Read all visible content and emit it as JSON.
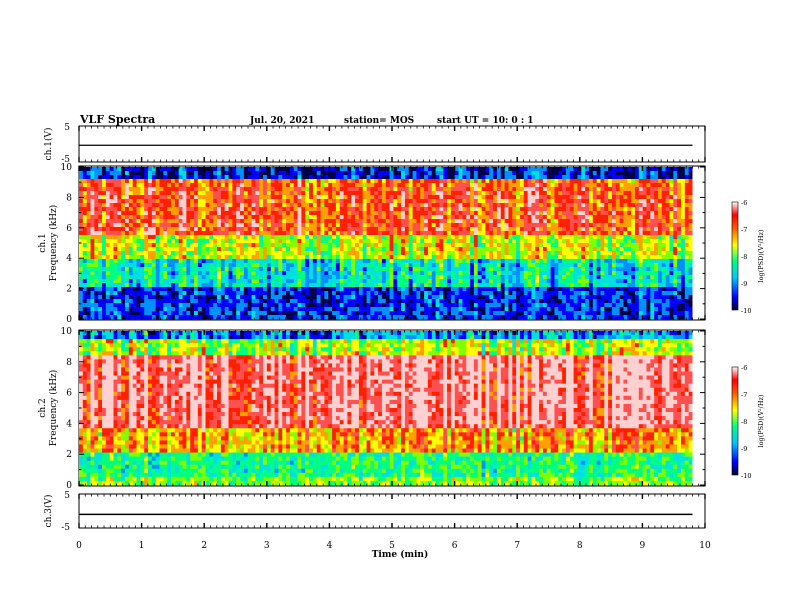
{
  "header": {
    "title": "VLF Spectra",
    "date": "Jul. 20, 2021",
    "station": "station= MOS",
    "start": "start  UT =   10: 0  : 1"
  },
  "chart_data": [
    {
      "type": "line",
      "panel": "ch1-voltage",
      "ylabel": "ch.1(V)",
      "ylim": [
        -5,
        5
      ],
      "yticks": [
        "5",
        "-5"
      ],
      "xlim": [
        0,
        10
      ],
      "series": [
        {
          "x": [
            0,
            9.8
          ],
          "values": [
            -0.4,
            -0.4
          ]
        }
      ]
    },
    {
      "type": "heatmap",
      "panel": "ch1-spectrogram",
      "ylabel_line1": "ch.1",
      "ylabel_line2": "Frequency (kHz)",
      "ylim": [
        0,
        10
      ],
      "yticks": [
        "0",
        "2",
        "4",
        "6",
        "8",
        "10"
      ],
      "xlim": [
        0,
        10
      ],
      "data_end_min": 9.8,
      "colorbar": {
        "label": "log(PSD)(V²/Hz)",
        "range": [
          -10,
          -6
        ],
        "ticks": [
          "-6",
          "-7",
          "-8",
          "-9",
          "-10"
        ]
      }
    },
    {
      "type": "heatmap",
      "panel": "ch2-spectrogram",
      "ylabel_line1": "ch.2",
      "ylabel_line2": "Frequency (kHz)",
      "ylim": [
        0,
        10
      ],
      "yticks": [
        "0",
        "2",
        "4",
        "6",
        "8",
        "10"
      ],
      "xlim": [
        0,
        10
      ],
      "data_end_min": 9.8,
      "colorbar": {
        "label": "log(PSD)(V²/Hz)",
        "range": [
          -10,
          -6
        ],
        "ticks": [
          "-6",
          "-7",
          "-8",
          "-9",
          "-10"
        ]
      }
    },
    {
      "type": "line",
      "panel": "ch3-voltage",
      "ylabel": "ch.3(V)",
      "ylim": [
        -5,
        5
      ],
      "yticks": [
        "5",
        "-5"
      ],
      "xlim": [
        0,
        10
      ],
      "xlabel": "Time (min)",
      "xticks": [
        "0",
        "1",
        "2",
        "3",
        "4",
        "5",
        "6",
        "7",
        "8",
        "9",
        "10"
      ],
      "series": [
        {
          "x": [
            0,
            9.8
          ],
          "values": [
            -1.0,
            -1.0
          ]
        }
      ]
    }
  ]
}
